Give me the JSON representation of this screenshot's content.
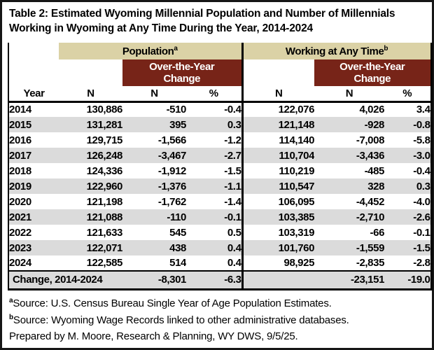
{
  "title": {
    "line1": "Table 2: Estimated Wyoming Millennial Population and Number of Millennials",
    "line2": "Working in Wyoming at Any Time During the Year, 2014-2024"
  },
  "colors": {
    "tan_header": "#dbd2a6",
    "maroon_header": "#772418",
    "alt_row": "#dbdbdb",
    "border": "#000000"
  },
  "header": {
    "group_population": {
      "label": "Population",
      "sup": "a"
    },
    "group_working": {
      "label": "Working at Any Time",
      "sup": "b"
    },
    "otc_line1": "Over-the-Year",
    "otc_line2": "Change",
    "columns": {
      "year": "Year",
      "pop_n": "N",
      "pop_chg_n": "N",
      "pop_chg_pct": "%",
      "work_n": "N",
      "work_chg_n": "N",
      "work_chg_pct": "%"
    }
  },
  "chart_data": {
    "type": "table",
    "title": "Table 2: Estimated Wyoming Millennial Population and Number of Millennials Working in Wyoming at Any Time During the Year, 2014-2024",
    "column_groups": [
      "Population",
      "Working at Any Time"
    ],
    "columns": [
      "Year",
      "Population N",
      "Population Over-the-Year Change N",
      "Population Over-the-Year Change %",
      "Working N",
      "Working Over-the-Year Change N",
      "Working Over-the-Year Change %"
    ]
  },
  "rows": [
    {
      "year": "2014",
      "pop_n": "130,886",
      "pop_chg_n": "-510",
      "pop_chg_pct": "-0.4",
      "work_n": "122,076",
      "work_chg_n": "4,026",
      "work_chg_pct": "3.4"
    },
    {
      "year": "2015",
      "pop_n": "131,281",
      "pop_chg_n": "395",
      "pop_chg_pct": "0.3",
      "work_n": "121,148",
      "work_chg_n": "-928",
      "work_chg_pct": "-0.8"
    },
    {
      "year": "2016",
      "pop_n": "129,715",
      "pop_chg_n": "-1,566",
      "pop_chg_pct": "-1.2",
      "work_n": "114,140",
      "work_chg_n": "-7,008",
      "work_chg_pct": "-5.8"
    },
    {
      "year": "2017",
      "pop_n": "126,248",
      "pop_chg_n": "-3,467",
      "pop_chg_pct": "-2.7",
      "work_n": "110,704",
      "work_chg_n": "-3,436",
      "work_chg_pct": "-3.0"
    },
    {
      "year": "2018",
      "pop_n": "124,336",
      "pop_chg_n": "-1,912",
      "pop_chg_pct": "-1.5",
      "work_n": "110,219",
      "work_chg_n": "-485",
      "work_chg_pct": "-0.4"
    },
    {
      "year": "2019",
      "pop_n": "122,960",
      "pop_chg_n": "-1,376",
      "pop_chg_pct": "-1.1",
      "work_n": "110,547",
      "work_chg_n": "328",
      "work_chg_pct": "0.3"
    },
    {
      "year": "2020",
      "pop_n": "121,198",
      "pop_chg_n": "-1,762",
      "pop_chg_pct": "-1.4",
      "work_n": "106,095",
      "work_chg_n": "-4,452",
      "work_chg_pct": "-4.0"
    },
    {
      "year": "2021",
      "pop_n": "121,088",
      "pop_chg_n": "-110",
      "pop_chg_pct": "-0.1",
      "work_n": "103,385",
      "work_chg_n": "-2,710",
      "work_chg_pct": "-2.6"
    },
    {
      "year": "2022",
      "pop_n": "121,633",
      "pop_chg_n": "545",
      "pop_chg_pct": "0.5",
      "work_n": "103,319",
      "work_chg_n": "-66",
      "work_chg_pct": "-0.1"
    },
    {
      "year": "2023",
      "pop_n": "122,071",
      "pop_chg_n": "438",
      "pop_chg_pct": "0.4",
      "work_n": "101,760",
      "work_chg_n": "-1,559",
      "work_chg_pct": "-1.5"
    },
    {
      "year": "2024",
      "pop_n": "122,585",
      "pop_chg_n": "514",
      "pop_chg_pct": "0.4",
      "work_n": "98,925",
      "work_chg_n": "-2,835",
      "work_chg_pct": "-2.8"
    }
  ],
  "summary": {
    "label": "Change, 2014-2024",
    "pop_chg_n": "-8,301",
    "pop_chg_pct": "-6.3",
    "work_chg_n": "-23,151",
    "work_chg_pct": "-19.0"
  },
  "footnotes": [
    {
      "sup": "a",
      "text": "Source: U.S. Census Bureau Single Year of Age Population Estimates."
    },
    {
      "sup": "b",
      "text": "Source: Wyoming Wage Records linked to other administrative databases."
    },
    {
      "sup": "",
      "text": "Prepared by M. Moore, Research & Planning, WY DWS, 9/5/25."
    }
  ]
}
